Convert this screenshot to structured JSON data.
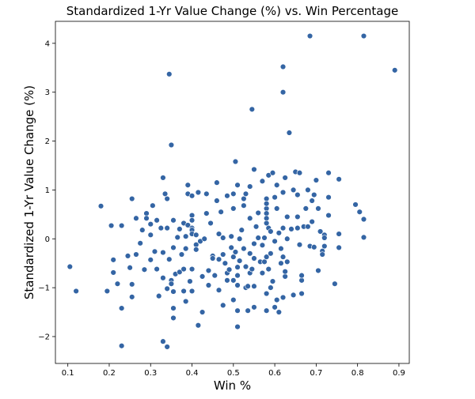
{
  "chart_data": {
    "type": "scatter",
    "title": "Standardized 1-Yr Value Change (%) vs. Win Percentage",
    "xlabel": "Win %",
    "ylabel": "Standardized 1-Yr Value Change (%)",
    "xlim": [
      0.07,
      0.925
    ],
    "ylim": [
      -2.55,
      4.45
    ],
    "xticks": [
      0.1,
      0.2,
      0.3,
      0.4,
      0.5,
      0.6,
      0.7,
      0.8,
      0.9
    ],
    "xtick_labels": [
      "0.1",
      "0.2",
      "0.3",
      "0.4",
      "0.5",
      "0.6",
      "0.7",
      "0.8",
      "0.9"
    ],
    "yticks": [
      -2,
      -1,
      0,
      1,
      2,
      3,
      4
    ],
    "ytick_labels": [
      "−2",
      "−1",
      "0",
      "1",
      "2",
      "3",
      "4"
    ],
    "grid": false,
    "marker_color": "#3465a4",
    "marker_edge": "#ffffff",
    "points": [
      [
        0.105,
        -0.57
      ],
      [
        0.12,
        -1.07
      ],
      [
        0.18,
        0.67
      ],
      [
        0.195,
        -1.07
      ],
      [
        0.205,
        0.27
      ],
      [
        0.21,
        -0.43
      ],
      [
        0.21,
        -0.69
      ],
      [
        0.22,
        -0.92
      ],
      [
        0.23,
        0.27
      ],
      [
        0.23,
        -1.42
      ],
      [
        0.23,
        -2.19
      ],
      [
        0.245,
        -0.35
      ],
      [
        0.25,
        -0.59
      ],
      [
        0.255,
        0.82
      ],
      [
        0.255,
        -0.93
      ],
      [
        0.255,
        -1.19
      ],
      [
        0.265,
        0.42
      ],
      [
        0.265,
        -0.32
      ],
      [
        0.275,
        -0.09
      ],
      [
        0.28,
        0.18
      ],
      [
        0.285,
        -0.63
      ],
      [
        0.29,
        0.52
      ],
      [
        0.29,
        0.42
      ],
      [
        0.3,
        0.3
      ],
      [
        0.3,
        0.08
      ],
      [
        0.3,
        -0.43
      ],
      [
        0.305,
        0.68
      ],
      [
        0.31,
        -0.26
      ],
      [
        0.315,
        0.38
      ],
      [
        0.315,
        -0.62
      ],
      [
        0.32,
        -1.17
      ],
      [
        0.325,
        0.22
      ],
      [
        0.33,
        1.25
      ],
      [
        0.33,
        -0.28
      ],
      [
        0.33,
        -0.8
      ],
      [
        0.33,
        -2.1
      ],
      [
        0.335,
        0.92
      ],
      [
        0.34,
        0.82
      ],
      [
        0.34,
        0.22
      ],
      [
        0.34,
        -1.02
      ],
      [
        0.34,
        -2.21
      ],
      [
        0.345,
        3.37
      ],
      [
        0.345,
        -0.42
      ],
      [
        0.35,
        -0.85
      ],
      [
        0.35,
        1.92
      ],
      [
        0.35,
        -0.92
      ],
      [
        0.355,
        0.38
      ],
      [
        0.355,
        -0.18
      ],
      [
        0.355,
        -1.08
      ],
      [
        0.355,
        -1.42
      ],
      [
        0.355,
        -1.62
      ],
      [
        0.36,
        -0.72
      ],
      [
        0.365,
        0.03
      ],
      [
        0.37,
        0.2
      ],
      [
        0.37,
        -0.68
      ],
      [
        0.375,
        -0.32
      ],
      [
        0.38,
        0.32
      ],
      [
        0.38,
        -0.62
      ],
      [
        0.38,
        -1.07
      ],
      [
        0.385,
        -0.2
      ],
      [
        0.385,
        0.05
      ],
      [
        0.385,
        -1.28
      ],
      [
        0.39,
        0.28
      ],
      [
        0.39,
        1.1
      ],
      [
        0.39,
        0.92
      ],
      [
        0.395,
        -0.87
      ],
      [
        0.4,
        0.48
      ],
      [
        0.4,
        0.38
      ],
      [
        0.4,
        0.22
      ],
      [
        0.4,
        0.18
      ],
      [
        0.4,
        0.1
      ],
      [
        0.4,
        0.88
      ],
      [
        0.4,
        -0.62
      ],
      [
        0.4,
        -1.07
      ],
      [
        0.41,
        0.08
      ],
      [
        0.41,
        -0.12
      ],
      [
        0.41,
        -0.22
      ],
      [
        0.415,
        -1.77
      ],
      [
        0.415,
        0.95
      ],
      [
        0.42,
        -0.05
      ],
      [
        0.425,
        -0.77
      ],
      [
        0.425,
        -1.5
      ],
      [
        0.43,
        0.0
      ],
      [
        0.435,
        0.92
      ],
      [
        0.435,
        0.52
      ],
      [
        0.44,
        -0.65
      ],
      [
        0.44,
        -0.95
      ],
      [
        0.445,
        0.32
      ],
      [
        0.45,
        -0.35
      ],
      [
        0.45,
        -0.4
      ],
      [
        0.455,
        -0.75
      ],
      [
        0.46,
        1.15
      ],
      [
        0.46,
        0.78
      ],
      [
        0.465,
        -0.42
      ],
      [
        0.465,
        -1.05
      ],
      [
        0.465,
        0.1
      ],
      [
        0.47,
        0.55
      ],
      [
        0.475,
        -0.32
      ],
      [
        0.475,
        0.02
      ],
      [
        0.475,
        -1.36
      ],
      [
        0.48,
        -0.5
      ],
      [
        0.485,
        0.88
      ],
      [
        0.485,
        -0.7
      ],
      [
        0.485,
        -0.85
      ],
      [
        0.49,
        -0.63
      ],
      [
        0.495,
        0.05
      ],
      [
        0.495,
        -0.18
      ],
      [
        0.5,
        -0.37
      ],
      [
        0.5,
        -0.85
      ],
      [
        0.5,
        -1.25
      ],
      [
        0.5,
        0.92
      ],
      [
        0.5,
        0.62
      ],
      [
        0.505,
        1.58
      ],
      [
        0.505,
        -0.27
      ],
      [
        0.51,
        1.1
      ],
      [
        0.51,
        -0.58
      ],
      [
        0.51,
        -0.75
      ],
      [
        0.51,
        -0.95
      ],
      [
        0.51,
        -1.47
      ],
      [
        0.51,
        -1.8
      ],
      [
        0.515,
        -0.45
      ],
      [
        0.515,
        0.0
      ],
      [
        0.52,
        0.18
      ],
      [
        0.525,
        0.82
      ],
      [
        0.525,
        0.68
      ],
      [
        0.525,
        -0.2
      ],
      [
        0.53,
        0.92
      ],
      [
        0.53,
        -0.57
      ],
      [
        0.53,
        -1.0
      ],
      [
        0.535,
        -0.97
      ],
      [
        0.535,
        -1.47
      ],
      [
        0.54,
        1.07
      ],
      [
        0.54,
        0.42
      ],
      [
        0.54,
        -0.3
      ],
      [
        0.54,
        -0.7
      ],
      [
        0.545,
        2.65
      ],
      [
        0.545,
        -0.62
      ],
      [
        0.55,
        1.42
      ],
      [
        0.55,
        -0.1
      ],
      [
        0.55,
        -0.4
      ],
      [
        0.55,
        -0.97
      ],
      [
        0.55,
        -1.4
      ],
      [
        0.555,
        0.25
      ],
      [
        0.56,
        0.02
      ],
      [
        0.56,
        0.53
      ],
      [
        0.565,
        -0.47
      ],
      [
        0.57,
        1.18
      ],
      [
        0.57,
        -0.13
      ],
      [
        0.57,
        -0.7
      ],
      [
        0.575,
        0.02
      ],
      [
        0.575,
        -0.47
      ],
      [
        0.58,
        0.82
      ],
      [
        0.58,
        0.62
      ],
      [
        0.58,
        0.52
      ],
      [
        0.58,
        0.42
      ],
      [
        0.58,
        0.32
      ],
      [
        0.58,
        0.72
      ],
      [
        0.58,
        -0.37
      ],
      [
        0.58,
        -1.12
      ],
      [
        0.58,
        -1.47
      ],
      [
        0.585,
        1.3
      ],
      [
        0.585,
        0.22
      ],
      [
        0.585,
        -0.62
      ],
      [
        0.59,
        0.15
      ],
      [
        0.59,
        -0.3
      ],
      [
        0.59,
        -1.0
      ],
      [
        0.595,
        1.35
      ],
      [
        0.595,
        -0.87
      ],
      [
        0.6,
        0.85
      ],
      [
        0.6,
        -0.05
      ],
      [
        0.6,
        -1.4
      ],
      [
        0.605,
        1.1
      ],
      [
        0.605,
        0.62
      ],
      [
        0.605,
        -1.25
      ],
      [
        0.61,
        0.12
      ],
      [
        0.61,
        -1.5
      ],
      [
        0.615,
        -0.2
      ],
      [
        0.615,
        -0.5
      ],
      [
        0.62,
        0.95
      ],
      [
        0.62,
        0.22
      ],
      [
        0.62,
        -0.37
      ],
      [
        0.62,
        -1.2
      ],
      [
        0.62,
        3.52
      ],
      [
        0.62,
        3.0
      ],
      [
        0.625,
        1.25
      ],
      [
        0.625,
        -0.77
      ],
      [
        0.625,
        -0.67
      ],
      [
        0.63,
        0.45
      ],
      [
        0.63,
        0.0
      ],
      [
        0.63,
        -0.47
      ],
      [
        0.635,
        2.17
      ],
      [
        0.64,
        0.2
      ],
      [
        0.645,
        1.0
      ],
      [
        0.645,
        -1.15
      ],
      [
        0.65,
        1.37
      ],
      [
        0.655,
        0.9
      ],
      [
        0.655,
        0.45
      ],
      [
        0.655,
        0.22
      ],
      [
        0.66,
        1.35
      ],
      [
        0.66,
        -0.12
      ],
      [
        0.665,
        -0.85
      ],
      [
        0.665,
        -0.75
      ],
      [
        0.665,
        -1.12
      ],
      [
        0.67,
        0.25
      ],
      [
        0.675,
        0.62
      ],
      [
        0.68,
        1.0
      ],
      [
        0.68,
        0.25
      ],
      [
        0.685,
        4.15
      ],
      [
        0.685,
        -0.15
      ],
      [
        0.69,
        0.78
      ],
      [
        0.69,
        0.35
      ],
      [
        0.695,
        0.9
      ],
      [
        0.695,
        -0.17
      ],
      [
        0.7,
        1.2
      ],
      [
        0.705,
        0.62
      ],
      [
        0.705,
        -0.65
      ],
      [
        0.71,
        0.15
      ],
      [
        0.715,
        -0.25
      ],
      [
        0.715,
        -0.32
      ],
      [
        0.72,
        0.08
      ],
      [
        0.72,
        0.02
      ],
      [
        0.72,
        -0.15
      ],
      [
        0.73,
        1.35
      ],
      [
        0.73,
        0.85
      ],
      [
        0.73,
        0.48
      ],
      [
        0.745,
        -0.92
      ],
      [
        0.755,
        1.22
      ],
      [
        0.755,
        0.1
      ],
      [
        0.755,
        -0.18
      ],
      [
        0.795,
        0.7
      ],
      [
        0.805,
        0.55
      ],
      [
        0.815,
        4.15
      ],
      [
        0.815,
        0.4
      ],
      [
        0.815,
        0.03
      ],
      [
        0.89,
        3.45
      ]
    ]
  }
}
